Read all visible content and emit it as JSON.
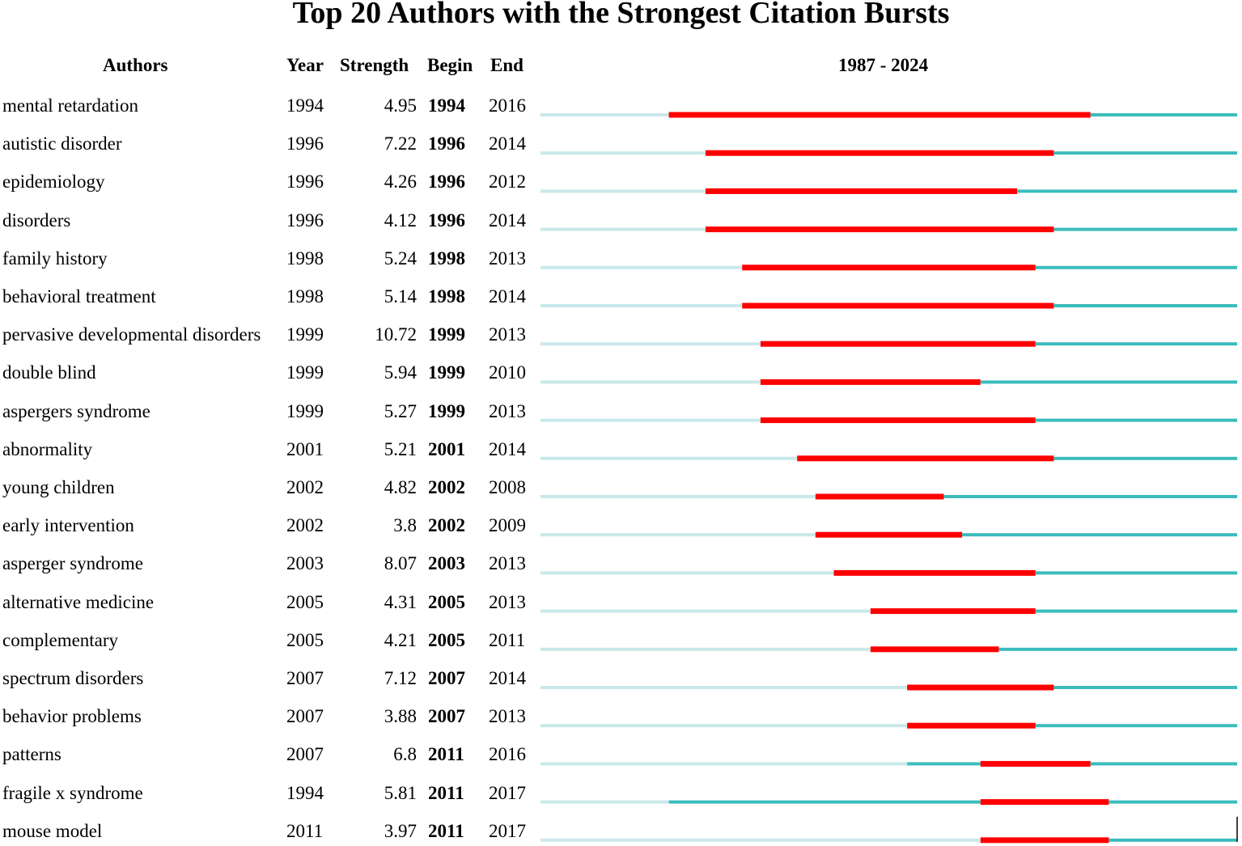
{
  "title": "Top 20 Authors with the Strongest Citation Bursts",
  "headers": {
    "authors": "Authors",
    "year": "Year",
    "strength": "Strength",
    "begin": "Begin",
    "end": "End",
    "range": "1987 - 2024"
  },
  "colors": {
    "burst": "#ff0000",
    "active": "#3bbcbc",
    "inactive": "#c9e8ea"
  },
  "chart_data": {
    "type": "table",
    "timeline_start": 1987,
    "timeline_end": 2024,
    "rows": [
      {
        "keyword": "mental retardation",
        "year": "1994",
        "strength": "4.95",
        "begin": "1994",
        "end": "2016"
      },
      {
        "keyword": "autistic disorder",
        "year": "1996",
        "strength": "7.22",
        "begin": "1996",
        "end": "2014"
      },
      {
        "keyword": "epidemiology",
        "year": "1996",
        "strength": "4.26",
        "begin": "1996",
        "end": "2012"
      },
      {
        "keyword": "disorders",
        "year": "1996",
        "strength": "4.12",
        "begin": "1996",
        "end": "2014"
      },
      {
        "keyword": "family history",
        "year": "1998",
        "strength": "5.24",
        "begin": "1998",
        "end": "2013"
      },
      {
        "keyword": "behavioral treatment",
        "year": "1998",
        "strength": "5.14",
        "begin": "1998",
        "end": "2014"
      },
      {
        "keyword": "pervasive developmental disorders",
        "year": "1999",
        "strength": "10.72",
        "begin": "1999",
        "end": "2013"
      },
      {
        "keyword": "double blind",
        "year": "1999",
        "strength": "5.94",
        "begin": "1999",
        "end": "2010"
      },
      {
        "keyword": "aspergers syndrome",
        "year": "1999",
        "strength": "5.27",
        "begin": "1999",
        "end": "2013"
      },
      {
        "keyword": "abnormality",
        "year": "2001",
        "strength": "5.21",
        "begin": "2001",
        "end": "2014"
      },
      {
        "keyword": "young children",
        "year": "2002",
        "strength": "4.82",
        "begin": "2002",
        "end": "2008"
      },
      {
        "keyword": "early intervention",
        "year": "2002",
        "strength": "3.8",
        "begin": "2002",
        "end": "2009"
      },
      {
        "keyword": "asperger syndrome",
        "year": "2003",
        "strength": "8.07",
        "begin": "2003",
        "end": "2013"
      },
      {
        "keyword": "alternative medicine",
        "year": "2005",
        "strength": "4.31",
        "begin": "2005",
        "end": "2013"
      },
      {
        "keyword": "complementary",
        "year": "2005",
        "strength": "4.21",
        "begin": "2005",
        "end": "2011"
      },
      {
        "keyword": "spectrum disorders",
        "year": "2007",
        "strength": "7.12",
        "begin": "2007",
        "end": "2014"
      },
      {
        "keyword": "behavior problems",
        "year": "2007",
        "strength": "3.88",
        "begin": "2007",
        "end": "2013"
      },
      {
        "keyword": "patterns",
        "year": "2007",
        "strength": "6.8",
        "begin": "2011",
        "end": "2016"
      },
      {
        "keyword": "fragile x syndrome",
        "year": "1994",
        "strength": "5.81",
        "begin": "2011",
        "end": "2017"
      },
      {
        "keyword": "mouse model",
        "year": "2011",
        "strength": "3.97",
        "begin": "2011",
        "end": "2017"
      }
    ]
  }
}
